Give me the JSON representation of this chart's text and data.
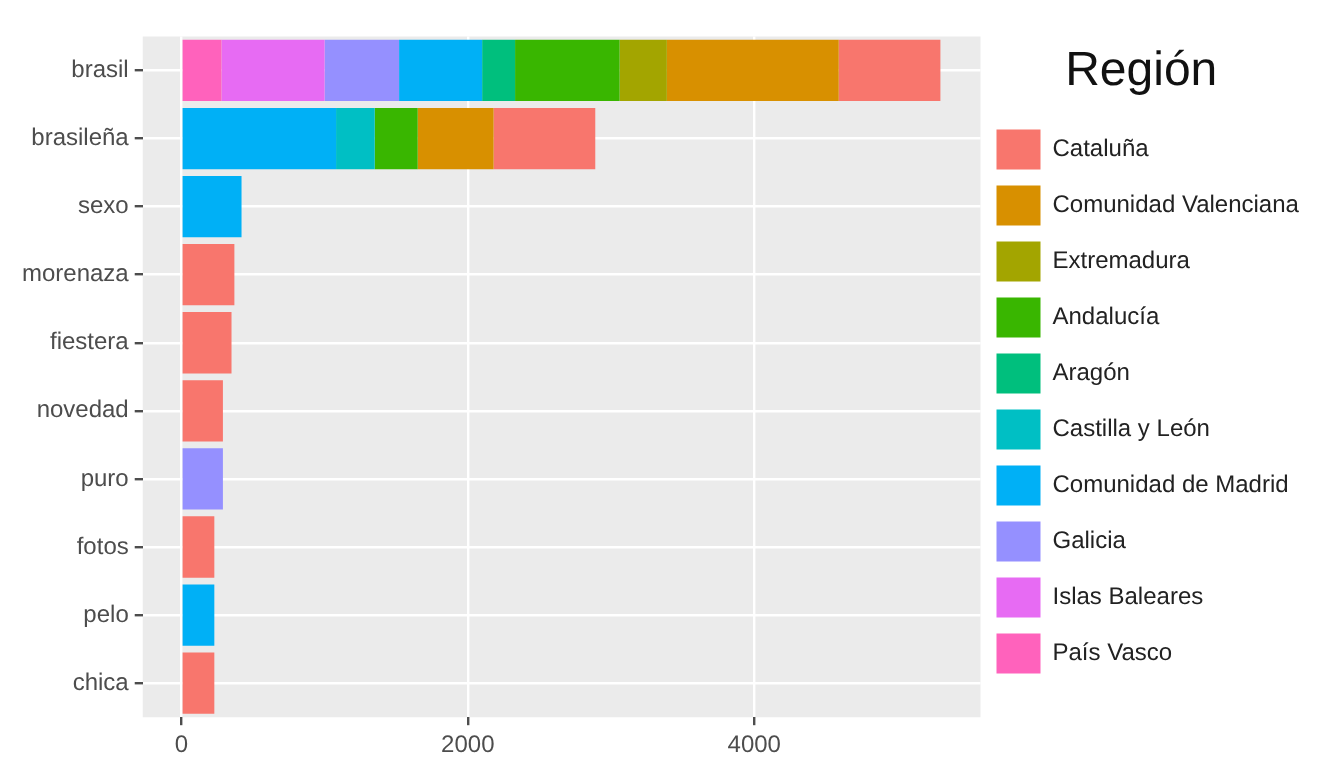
{
  "chart_data": {
    "type": "bar",
    "orientation": "horizontal",
    "stacked": true,
    "legend_title": "Región",
    "legend": "right",
    "grid": true,
    "categories": [
      "brasil",
      "brasileña",
      "sexo",
      "morenaza",
      "fiestera",
      "novedad",
      "puro",
      "fotos",
      "pelo",
      "chica"
    ],
    "xlim": [
      -270,
      5580
    ],
    "xticks": [
      0,
      2000,
      4000
    ],
    "series": [
      {
        "name": "País Vasco",
        "color": "#ff62bc",
        "values": [
          280,
          null,
          null,
          null,
          null,
          null,
          null,
          null,
          null,
          null
        ]
      },
      {
        "name": "Islas Baleares",
        "color": "#e76bf3",
        "values": [
          720,
          null,
          null,
          null,
          null,
          null,
          null,
          null,
          null,
          null
        ]
      },
      {
        "name": "Galicia",
        "color": "#9590ff",
        "values": [
          520,
          null,
          null,
          null,
          null,
          null,
          290,
          null,
          null,
          null
        ]
      },
      {
        "name": "Comunidad de Madrid",
        "color": "#00b0f6",
        "values": [
          580,
          1080,
          420,
          null,
          null,
          null,
          null,
          null,
          230,
          null
        ]
      },
      {
        "name": "Castilla y León",
        "color": "#00bfc4",
        "values": [
          null,
          270,
          null,
          null,
          null,
          null,
          null,
          null,
          null,
          null
        ]
      },
      {
        "name": "Aragón",
        "color": "#00bf7d",
        "values": [
          230,
          null,
          null,
          null,
          null,
          null,
          null,
          null,
          null,
          null
        ]
      },
      {
        "name": "Andalucía",
        "color": "#39b600",
        "values": [
          730,
          300,
          null,
          null,
          null,
          null,
          null,
          null,
          null,
          null
        ]
      },
      {
        "name": "Extremadura",
        "color": "#a3a500",
        "values": [
          330,
          null,
          null,
          null,
          null,
          null,
          null,
          null,
          null,
          null
        ]
      },
      {
        "name": "Comunidad Valenciana",
        "color": "#d89000",
        "values": [
          1200,
          530,
          null,
          null,
          null,
          null,
          null,
          null,
          null,
          null
        ]
      },
      {
        "name": "Cataluña",
        "color": "#f8766d",
        "values": [
          710,
          710,
          null,
          370,
          350,
          290,
          null,
          230,
          null,
          230
        ]
      }
    ]
  }
}
